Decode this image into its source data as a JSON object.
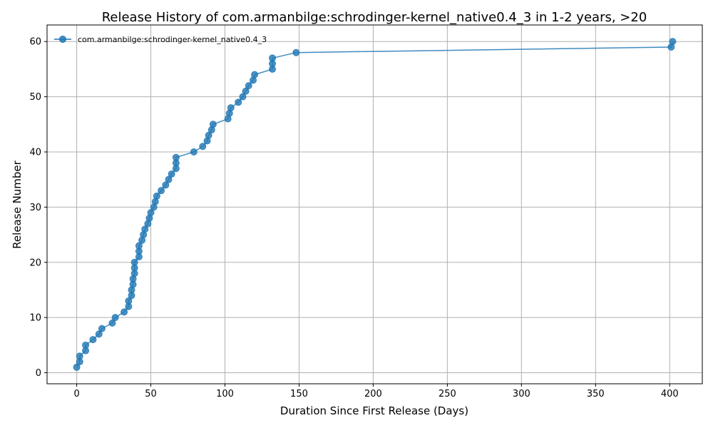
{
  "chart_data": {
    "type": "line",
    "title": "Release History of com.armanbilge:schrodinger-kernel_native0.4_3 in 1-2 years, >20",
    "xlabel": "Duration Since First Release (Days)",
    "ylabel": "Release Number",
    "xlim": [
      -20,
      422
    ],
    "ylim": [
      -2,
      63
    ],
    "xticks": [
      0,
      50,
      100,
      150,
      200,
      250,
      300,
      350,
      400
    ],
    "yticks": [
      0,
      10,
      20,
      30,
      40,
      50,
      60
    ],
    "grid": true,
    "legend_position": "top-left",
    "color": "#1f77b4",
    "series": [
      {
        "name": "com.armanbilge:schrodinger-kernel_native0.4_3",
        "points": [
          [
            0,
            1
          ],
          [
            2,
            2
          ],
          [
            2,
            3
          ],
          [
            6,
            4
          ],
          [
            6,
            5
          ],
          [
            11,
            6
          ],
          [
            15,
            7
          ],
          [
            17,
            8
          ],
          [
            24,
            9
          ],
          [
            26,
            10
          ],
          [
            32,
            11
          ],
          [
            35,
            12
          ],
          [
            35,
            13
          ],
          [
            37,
            14
          ],
          [
            37,
            15
          ],
          [
            38,
            16
          ],
          [
            38,
            17
          ],
          [
            39,
            18
          ],
          [
            39,
            19
          ],
          [
            39,
            20
          ],
          [
            42,
            21
          ],
          [
            42,
            22
          ],
          [
            42,
            23
          ],
          [
            44,
            24
          ],
          [
            45,
            25
          ],
          [
            46,
            26
          ],
          [
            48,
            27
          ],
          [
            49,
            28
          ],
          [
            50,
            29
          ],
          [
            52,
            30
          ],
          [
            53,
            31
          ],
          [
            54,
            32
          ],
          [
            57,
            33
          ],
          [
            60,
            34
          ],
          [
            62,
            35
          ],
          [
            64,
            36
          ],
          [
            67,
            37
          ],
          [
            67,
            38
          ],
          [
            67,
            39
          ],
          [
            79,
            40
          ],
          [
            85,
            41
          ],
          [
            88,
            42
          ],
          [
            89,
            43
          ],
          [
            91,
            44
          ],
          [
            92,
            45
          ],
          [
            102,
            46
          ],
          [
            103,
            47
          ],
          [
            104,
            48
          ],
          [
            109,
            49
          ],
          [
            112,
            50
          ],
          [
            114,
            51
          ],
          [
            116,
            52
          ],
          [
            119,
            53
          ],
          [
            120,
            54
          ],
          [
            132,
            55
          ],
          [
            132,
            56
          ],
          [
            132,
            57
          ],
          [
            148,
            58
          ],
          [
            401,
            59
          ],
          [
            402,
            60
          ]
        ]
      }
    ]
  }
}
